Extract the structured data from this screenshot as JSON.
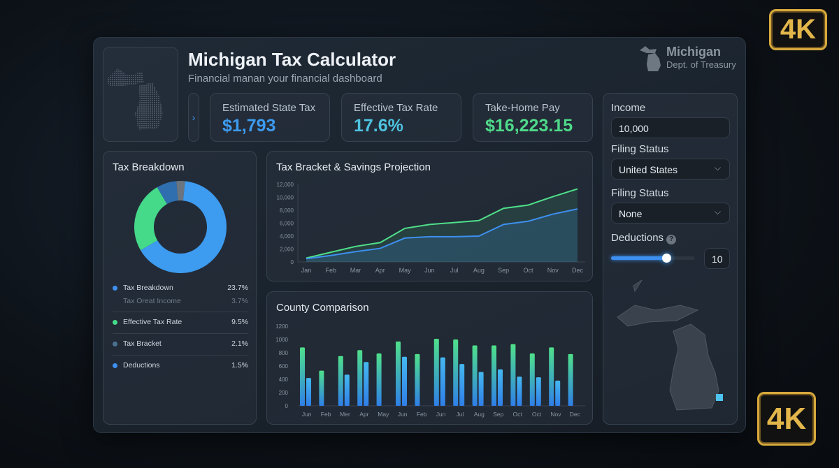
{
  "header": {
    "title": "Michigan Tax Calculator",
    "subtitle": "Financial manan your financial dashboard",
    "logo_name": "Michigan",
    "logo_sub": "Dept. of Treasury",
    "expand_icon": "chevron-right-icon"
  },
  "kpis": [
    {
      "label": "Estimated State Tax",
      "value": "$1,793",
      "color": "#3d9bf0"
    },
    {
      "label": "Effective Tax Rate",
      "value": "17.6%",
      "color": "#4ec3e0"
    },
    {
      "label": "Take-Home Pay",
      "value": "$16,223.15",
      "color": "#4fd98a"
    }
  ],
  "form": {
    "income_label": "Income",
    "income_value": "10,000",
    "filing1_label": "Filing Status",
    "filing1_value": "United States",
    "filing2_label": "Filing Status",
    "filing2_value": "None",
    "deductions_label": "Deductions",
    "deductions_value": "10",
    "deductions_slider_fraction": 0.66
  },
  "breakdown": {
    "title": "Tax Breakdown",
    "items": [
      {
        "label": "Tax Breakdown",
        "value": "23.7%",
        "color": "#3d8ff0"
      },
      {
        "label": "Tax Oreat Income",
        "value": "3.7%",
        "color": ""
      },
      {
        "label": "Effective Tax Rate",
        "value": "9.5%",
        "color": "#45d98a"
      },
      {
        "label": "Tax Bracket",
        "value": "2.1%",
        "color": "#4a7190"
      },
      {
        "label": "Deductions",
        "value": "1.5%",
        "color": "#3d8ff0"
      }
    ]
  },
  "badges": {
    "top": "4K",
    "bottom": "4K"
  },
  "chart_data": [
    {
      "type": "area",
      "title": "Tax Bracket & Savings Projection",
      "categories": [
        "Jan",
        "Feb",
        "Mar",
        "Apr",
        "May",
        "Jun",
        "Jul",
        "Aug",
        "Sep",
        "Oct",
        "Nov",
        "Dec"
      ],
      "yticks": [
        "0",
        "2,000",
        "4,000",
        "6,000",
        "8,000",
        "10,000",
        "12,000"
      ],
      "ylim": [
        0,
        12000
      ],
      "series": [
        {
          "color": "#4fe08a",
          "values": [
            600,
            1500,
            2400,
            3000,
            5200,
            5800,
            6100,
            6400,
            8300,
            8800,
            10100,
            11300
          ]
        },
        {
          "color": "#3d8ff0",
          "values": [
            500,
            1000,
            1600,
            2100,
            3700,
            3900,
            3900,
            4000,
            5800,
            6300,
            7400,
            8200
          ]
        }
      ]
    },
    {
      "type": "bar",
      "title": "County Comparison",
      "categories": [
        "Jun",
        "Feb",
        "Mer",
        "Apr",
        "May",
        "Jun",
        "Feb",
        "Jun",
        "Jul",
        "Aug",
        "Sep",
        "Oct",
        "Oct",
        "Nov",
        "Dec"
      ],
      "yticks": [
        "0",
        "200",
        "400",
        "600",
        "800",
        "1000",
        "1200"
      ],
      "ylim": [
        0,
        1200
      ],
      "series": [
        {
          "color": "#4fe08a",
          "values": [
            880,
            530,
            750,
            840,
            790,
            970,
            780,
            1010,
            1000,
            910,
            910,
            930,
            790,
            880,
            780
          ]
        },
        {
          "color": "#45b8f0",
          "values": [
            420,
            null,
            470,
            660,
            null,
            740,
            null,
            730,
            630,
            510,
            550,
            440,
            430,
            380,
            null
          ]
        }
      ]
    },
    {
      "type": "pie",
      "donut": true,
      "values": [
        65,
        25,
        7,
        3
      ],
      "colors": [
        "#3d9bf0",
        "#45d98a",
        "#2f6fb0",
        "#6b7580"
      ]
    }
  ]
}
